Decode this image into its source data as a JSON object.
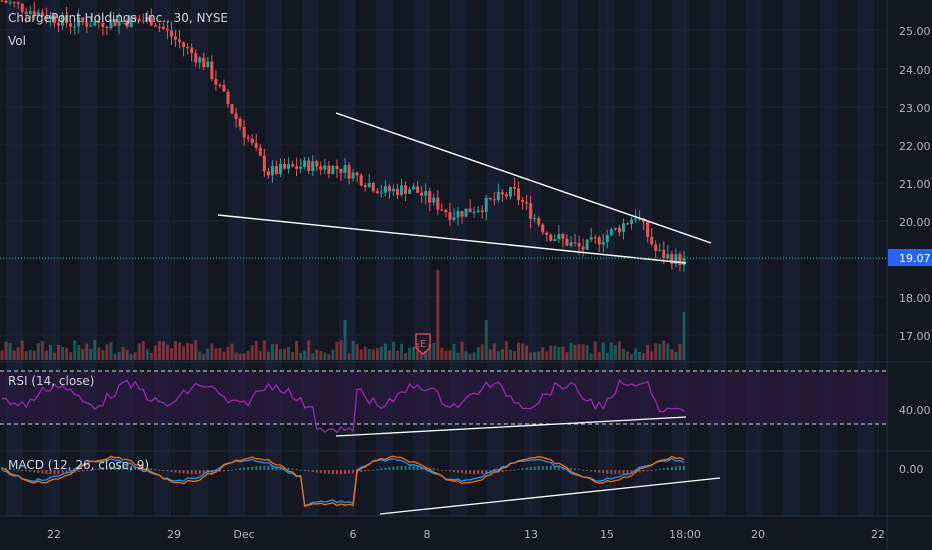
{
  "header": {
    "symbol_title": "ChargePoint Holdings, Inc., 30, NYSE",
    "vol_label": "Vol"
  },
  "price_axis": {
    "ticks": [
      "25.00",
      "24.00",
      "23.00",
      "22.00",
      "21.00",
      "20.00",
      "18.00",
      "17.00"
    ],
    "last_price": "19.07"
  },
  "rsi": {
    "label": "RSI (14, close)",
    "tick": "40.00"
  },
  "macd": {
    "label": "MACD (12, 26, close, 9)",
    "tick": "0.00"
  },
  "time_axis": [
    "22",
    "29",
    "Dec",
    "6",
    "8",
    "13",
    "15",
    "18:00",
    "20",
    "22"
  ],
  "earnings_marker": "E",
  "colors": {
    "background": "#131722",
    "up": "#26a69a",
    "down": "#ef5350",
    "rsi_line": "#9c27b0",
    "rsi_band": "#2a1a3e",
    "macd_line": "#2196f3",
    "signal_line": "#ff6d00",
    "last_price_label": "#2962ff",
    "trendline": "#ffffff"
  },
  "chart_data": {
    "type": "candlestick",
    "title": "ChargePoint Holdings, Inc., 30, NYSE",
    "price_range": [
      16.6,
      25.6
    ],
    "last_price": 19.07,
    "price_path": [
      [
        0,
        25.9
      ],
      [
        0.1,
        25.3
      ],
      [
        0.22,
        25.4
      ],
      [
        0.26,
        24.8
      ],
      [
        0.3,
        24.2
      ],
      [
        0.35,
        22.6
      ],
      [
        0.39,
        21.4
      ],
      [
        0.45,
        21.6
      ],
      [
        0.5,
        21.5
      ],
      [
        0.56,
        20.9
      ],
      [
        0.6,
        21.0
      ],
      [
        0.66,
        20.3
      ],
      [
        0.7,
        20.5
      ],
      [
        0.75,
        20.9
      ],
      [
        0.8,
        19.8
      ],
      [
        0.85,
        19.4
      ],
      [
        0.9,
        19.9
      ],
      [
        0.93,
        20.3
      ],
      [
        0.96,
        19.3
      ],
      [
        1.0,
        19.07
      ]
    ],
    "pattern_lines": [
      {
        "from": [
          0.0,
          20.1
        ],
        "to": [
          1.0,
          19.0
        ]
      },
      {
        "from": [
          0.0,
          22.85
        ],
        "to": [
          1.0,
          19.5
        ]
      }
    ],
    "rsi_band": [
      30,
      70
    ],
    "rsi_tick": 40.0,
    "macd_tick": 0.0
  }
}
